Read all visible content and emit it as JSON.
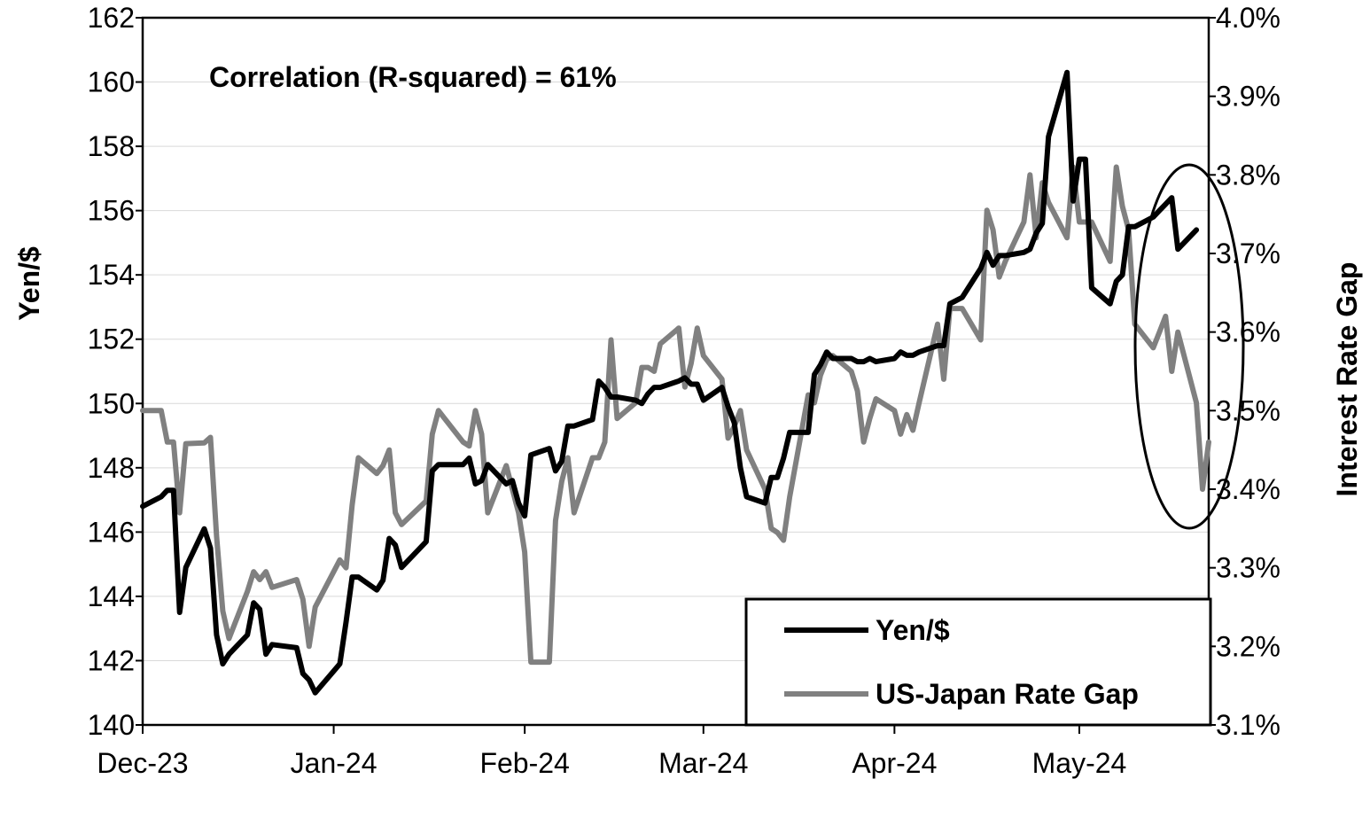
{
  "chart_data": {
    "type": "line",
    "x_labels": [
      "Dec-23",
      "Jan-24",
      "Feb-24",
      "Mar-24",
      "Apr-24",
      "May-24"
    ],
    "y_left": {
      "label": "Yen/$",
      "range": [
        140,
        162
      ],
      "ticks": [
        "140",
        "142",
        "144",
        "146",
        "148",
        "150",
        "152",
        "154",
        "156",
        "158",
        "160",
        "162"
      ]
    },
    "y_right": {
      "label": "Interest Rate Gap",
      "range": [
        3.1,
        4.0
      ],
      "ticks": [
        "3.1%",
        "3.2%",
        "3.3%",
        "3.4%",
        "3.5%",
        "3.6%",
        "3.7%",
        "3.8%",
        "3.9%",
        "4.0%"
      ]
    },
    "annotation": "Correlation (R-squared) = 61%",
    "grid": "horizontal",
    "legend_position": "bottom-right",
    "series": [
      {
        "name": "Yen/$",
        "axis": "left",
        "color": "#000000",
        "points": [
          [
            "2023-12-01",
            146.8
          ],
          [
            "2023-12-04",
            147.1
          ],
          [
            "2023-12-05",
            147.3
          ],
          [
            "2023-12-06",
            147.3
          ],
          [
            "2023-12-07",
            143.5
          ],
          [
            "2023-12-08",
            144.9
          ],
          [
            "2023-12-11",
            146.1
          ],
          [
            "2023-12-12",
            145.5
          ],
          [
            "2023-12-13",
            142.8
          ],
          [
            "2023-12-14",
            141.9
          ],
          [
            "2023-12-15",
            142.2
          ],
          [
            "2023-12-18",
            142.8
          ],
          [
            "2023-12-19",
            143.8
          ],
          [
            "2023-12-20",
            143.6
          ],
          [
            "2023-12-21",
            142.2
          ],
          [
            "2023-12-22",
            142.5
          ],
          [
            "2023-12-26",
            142.4
          ],
          [
            "2023-12-27",
            141.6
          ],
          [
            "2023-12-28",
            141.4
          ],
          [
            "2023-12-29",
            141.0
          ],
          [
            "2024-01-02",
            141.9
          ],
          [
            "2024-01-03",
            143.2
          ],
          [
            "2024-01-04",
            144.6
          ],
          [
            "2024-01-05",
            144.6
          ],
          [
            "2024-01-08",
            144.2
          ],
          [
            "2024-01-09",
            144.5
          ],
          [
            "2024-01-10",
            145.8
          ],
          [
            "2024-01-11",
            145.6
          ],
          [
            "2024-01-12",
            144.9
          ],
          [
            "2024-01-16",
            145.7
          ],
          [
            "2024-01-17",
            147.9
          ],
          [
            "2024-01-18",
            148.1
          ],
          [
            "2024-01-19",
            148.1
          ],
          [
            "2024-01-22",
            148.1
          ],
          [
            "2024-01-23",
            148.3
          ],
          [
            "2024-01-24",
            147.5
          ],
          [
            "2024-01-25",
            147.6
          ],
          [
            "2024-01-26",
            148.1
          ],
          [
            "2024-01-29",
            147.5
          ],
          [
            "2024-01-30",
            147.6
          ],
          [
            "2024-01-31",
            146.9
          ],
          [
            "2024-02-01",
            146.5
          ],
          [
            "2024-02-02",
            148.4
          ],
          [
            "2024-02-05",
            148.6
          ],
          [
            "2024-02-06",
            147.9
          ],
          [
            "2024-02-07",
            148.2
          ],
          [
            "2024-02-08",
            149.3
          ],
          [
            "2024-02-09",
            149.3
          ],
          [
            "2024-02-12",
            149.5
          ],
          [
            "2024-02-13",
            150.7
          ],
          [
            "2024-02-14",
            150.5
          ],
          [
            "2024-02-15",
            150.2
          ],
          [
            "2024-02-16",
            150.2
          ],
          [
            "2024-02-19",
            150.1
          ],
          [
            "2024-02-20",
            150.0
          ],
          [
            "2024-02-21",
            150.3
          ],
          [
            "2024-02-22",
            150.5
          ],
          [
            "2024-02-23",
            150.5
          ],
          [
            "2024-02-26",
            150.7
          ],
          [
            "2024-02-27",
            150.8
          ],
          [
            "2024-02-28",
            150.6
          ],
          [
            "2024-02-29",
            150.6
          ],
          [
            "2024-03-01",
            150.1
          ],
          [
            "2024-03-04",
            150.5
          ],
          [
            "2024-03-05",
            149.9
          ],
          [
            "2024-03-06",
            149.4
          ],
          [
            "2024-03-07",
            148.0
          ],
          [
            "2024-03-08",
            147.1
          ],
          [
            "2024-03-11",
            146.9
          ],
          [
            "2024-03-12",
            147.7
          ],
          [
            "2024-03-13",
            147.7
          ],
          [
            "2024-03-14",
            148.3
          ],
          [
            "2024-03-15",
            149.1
          ],
          [
            "2024-03-18",
            149.1
          ],
          [
            "2024-03-19",
            150.9
          ],
          [
            "2024-03-20",
            151.2
          ],
          [
            "2024-03-21",
            151.6
          ],
          [
            "2024-03-22",
            151.4
          ],
          [
            "2024-03-25",
            151.4
          ],
          [
            "2024-03-26",
            151.3
          ],
          [
            "2024-03-27",
            151.3
          ],
          [
            "2024-03-28",
            151.4
          ],
          [
            "2024-03-29",
            151.3
          ],
          [
            "2024-04-01",
            151.4
          ],
          [
            "2024-04-02",
            151.6
          ],
          [
            "2024-04-03",
            151.5
          ],
          [
            "2024-04-04",
            151.5
          ],
          [
            "2024-04-05",
            151.6
          ],
          [
            "2024-04-08",
            151.8
          ],
          [
            "2024-04-09",
            151.8
          ],
          [
            "2024-04-10",
            153.1
          ],
          [
            "2024-04-11",
            153.2
          ],
          [
            "2024-04-12",
            153.3
          ],
          [
            "2024-04-15",
            154.2
          ],
          [
            "2024-04-16",
            154.7
          ],
          [
            "2024-04-17",
            154.3
          ],
          [
            "2024-04-18",
            154.6
          ],
          [
            "2024-04-19",
            154.6
          ],
          [
            "2024-04-22",
            154.7
          ],
          [
            "2024-04-23",
            154.8
          ],
          [
            "2024-04-24",
            155.3
          ],
          [
            "2024-04-25",
            155.6
          ],
          [
            "2024-04-26",
            158.3
          ],
          [
            "2024-04-29",
            160.3
          ],
          [
            "2024-04-30",
            156.3
          ],
          [
            "2024-05-01",
            157.6
          ],
          [
            "2024-05-02",
            157.6
          ],
          [
            "2024-05-03",
            153.6
          ],
          [
            "2024-05-06",
            153.1
          ],
          [
            "2024-05-07",
            153.8
          ],
          [
            "2024-05-08",
            154.0
          ],
          [
            "2024-05-09",
            155.5
          ],
          [
            "2024-05-10",
            155.5
          ],
          [
            "2024-05-13",
            155.8
          ],
          [
            "2024-05-14",
            156.0
          ],
          [
            "2024-05-15",
            156.2
          ],
          [
            "2024-05-16",
            156.4
          ],
          [
            "2024-05-17",
            154.8
          ],
          [
            "2024-05-20",
            155.4
          ]
        ]
      },
      {
        "name": "US-Japan Rate Gap",
        "axis": "right",
        "color": "#808080",
        "points": [
          [
            "2023-12-01",
            3.5
          ],
          [
            "2023-12-04",
            3.5
          ],
          [
            "2023-12-05",
            3.46
          ],
          [
            "2023-12-06",
            3.46
          ],
          [
            "2023-12-07",
            3.37
          ],
          [
            "2023-12-08",
            3.458
          ],
          [
            "2023-12-11",
            3.459
          ],
          [
            "2023-12-12",
            3.466
          ],
          [
            "2023-12-13",
            3.34
          ],
          [
            "2023-12-14",
            3.245
          ],
          [
            "2023-12-15",
            3.21
          ],
          [
            "2023-12-18",
            3.27
          ],
          [
            "2023-12-19",
            3.295
          ],
          [
            "2023-12-20",
            3.285
          ],
          [
            "2023-12-21",
            3.295
          ],
          [
            "2023-12-22",
            3.275
          ],
          [
            "2023-12-26",
            3.285
          ],
          [
            "2023-12-27",
            3.26
          ],
          [
            "2023-12-28",
            3.2
          ],
          [
            "2023-12-29",
            3.25
          ],
          [
            "2024-01-02",
            3.31
          ],
          [
            "2024-01-03",
            3.3
          ],
          [
            "2024-01-04",
            3.38
          ],
          [
            "2024-01-05",
            3.44
          ],
          [
            "2024-01-08",
            3.42
          ],
          [
            "2024-01-09",
            3.43
          ],
          [
            "2024-01-10",
            3.45
          ],
          [
            "2024-01-11",
            3.37
          ],
          [
            "2024-01-12",
            3.355
          ],
          [
            "2024-01-16",
            3.385
          ],
          [
            "2024-01-17",
            3.47
          ],
          [
            "2024-01-18",
            3.5
          ],
          [
            "2024-01-19",
            3.49
          ],
          [
            "2024-01-22",
            3.46
          ],
          [
            "2024-01-23",
            3.455
          ],
          [
            "2024-01-24",
            3.5
          ],
          [
            "2024-01-25",
            3.47
          ],
          [
            "2024-01-26",
            3.37
          ],
          [
            "2024-01-29",
            3.43
          ],
          [
            "2024-01-30",
            3.4
          ],
          [
            "2024-01-31",
            3.37
          ],
          [
            "2024-02-01",
            3.32
          ],
          [
            "2024-02-02",
            3.18
          ],
          [
            "2024-02-05",
            3.18
          ],
          [
            "2024-02-06",
            3.36
          ],
          [
            "2024-02-07",
            3.41
          ],
          [
            "2024-02-08",
            3.44
          ],
          [
            "2024-02-09",
            3.37
          ],
          [
            "2024-02-12",
            3.44
          ],
          [
            "2024-02-13",
            3.44
          ],
          [
            "2024-02-14",
            3.46
          ],
          [
            "2024-02-15",
            3.59
          ],
          [
            "2024-02-16",
            3.49
          ],
          [
            "2024-02-19",
            3.51
          ],
          [
            "2024-02-20",
            3.555
          ],
          [
            "2024-02-21",
            3.555
          ],
          [
            "2024-02-22",
            3.55
          ],
          [
            "2024-02-23",
            3.585
          ],
          [
            "2024-02-26",
            3.605
          ],
          [
            "2024-02-27",
            3.53
          ],
          [
            "2024-02-28",
            3.56
          ],
          [
            "2024-02-29",
            3.605
          ],
          [
            "2024-03-01",
            3.57
          ],
          [
            "2024-03-04",
            3.54
          ],
          [
            "2024-03-05",
            3.465
          ],
          [
            "2024-03-06",
            3.48
          ],
          [
            "2024-03-07",
            3.5
          ],
          [
            "2024-03-08",
            3.45
          ],
          [
            "2024-03-11",
            3.4
          ],
          [
            "2024-03-12",
            3.35
          ],
          [
            "2024-03-13",
            3.345
          ],
          [
            "2024-03-14",
            3.335
          ],
          [
            "2024-03-15",
            3.39
          ],
          [
            "2024-03-18",
            3.52
          ],
          [
            "2024-03-19",
            3.51
          ],
          [
            "2024-03-20",
            3.545
          ],
          [
            "2024-03-21",
            3.565
          ],
          [
            "2024-03-22",
            3.57
          ],
          [
            "2024-03-25",
            3.55
          ],
          [
            "2024-03-26",
            3.525
          ],
          [
            "2024-03-27",
            3.46
          ],
          [
            "2024-03-28",
            3.49
          ],
          [
            "2024-03-29",
            3.515
          ],
          [
            "2024-04-01",
            3.5
          ],
          [
            "2024-04-02",
            3.47
          ],
          [
            "2024-04-03",
            3.495
          ],
          [
            "2024-04-04",
            3.475
          ],
          [
            "2024-04-05",
            3.51
          ],
          [
            "2024-04-08",
            3.61
          ],
          [
            "2024-04-09",
            3.54
          ],
          [
            "2024-04-10",
            3.63
          ],
          [
            "2024-04-11",
            3.63
          ],
          [
            "2024-04-12",
            3.63
          ],
          [
            "2024-04-15",
            3.59
          ],
          [
            "2024-04-16",
            3.755
          ],
          [
            "2024-04-17",
            3.73
          ],
          [
            "2024-04-18",
            3.67
          ],
          [
            "2024-04-19",
            3.69
          ],
          [
            "2024-04-22",
            3.74
          ],
          [
            "2024-04-23",
            3.8
          ],
          [
            "2024-04-24",
            3.72
          ],
          [
            "2024-04-25",
            3.79
          ],
          [
            "2024-04-26",
            3.765
          ],
          [
            "2024-04-29",
            3.72
          ],
          [
            "2024-04-30",
            3.81
          ],
          [
            "2024-05-01",
            3.74
          ],
          [
            "2024-05-02",
            3.74
          ],
          [
            "2024-05-03",
            3.74
          ],
          [
            "2024-05-06",
            3.69
          ],
          [
            "2024-05-07",
            3.81
          ],
          [
            "2024-05-08",
            3.76
          ],
          [
            "2024-05-09",
            3.73
          ],
          [
            "2024-05-10",
            3.61
          ],
          [
            "2024-05-13",
            3.58
          ],
          [
            "2024-05-14",
            3.6
          ],
          [
            "2024-05-15",
            3.62
          ],
          [
            "2024-05-16",
            3.55
          ],
          [
            "2024-05-17",
            3.6
          ],
          [
            "2024-05-20",
            3.51
          ],
          [
            "2024-05-21",
            3.4
          ],
          [
            "2024-05-22",
            3.46
          ]
        ]
      }
    ]
  }
}
